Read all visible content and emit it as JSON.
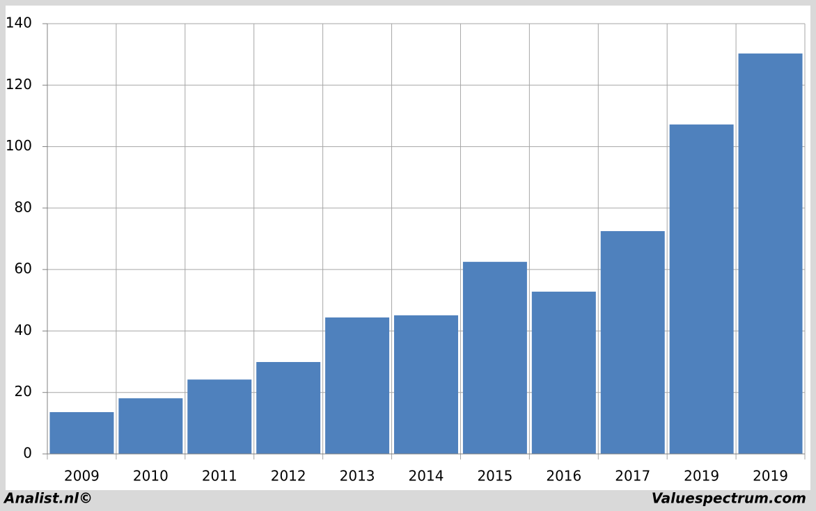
{
  "chart_data": {
    "type": "bar",
    "categories": [
      "2009",
      "2010",
      "2011",
      "2012",
      "2013",
      "2014",
      "2015",
      "2016",
      "2017",
      "2019",
      "2019"
    ],
    "values": [
      13.6,
      18.1,
      24.2,
      29.9,
      44.4,
      45.1,
      62.5,
      52.8,
      72.5,
      107.2,
      130.3
    ],
    "color": "#4f81bd",
    "ylim": [
      0,
      140
    ],
    "yticks": [
      0,
      20,
      40,
      60,
      80,
      100,
      120,
      140
    ],
    "grid": true,
    "footer_left": "Analist.nl©",
    "footer_right": "Valuespectrum.com"
  }
}
